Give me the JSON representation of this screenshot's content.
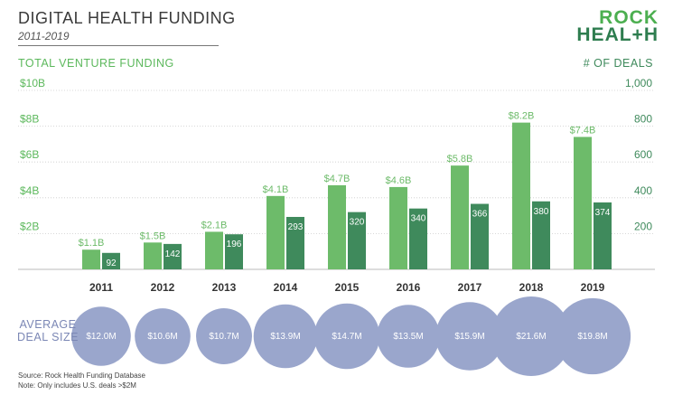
{
  "header": {
    "title": "DIGITAL HEALTH FUNDING",
    "subtitle": "2011-2019",
    "logo_line1": "ROCK",
    "logo_line2": "HEAL+H"
  },
  "colors": {
    "funding_bar": "#6dbb6a",
    "deals_bar": "#3f8a5c",
    "bubble": "#9aa6cc",
    "left_axis_text": "#5cb85c",
    "right_axis_text": "#3f8a5c",
    "grid": "#cccccc"
  },
  "chart_data": {
    "type": "bar",
    "title": "DIGITAL HEALTH FUNDING",
    "subtitle": "2011-2019",
    "categories": [
      "2011",
      "2012",
      "2013",
      "2014",
      "2015",
      "2016",
      "2017",
      "2018",
      "2019"
    ],
    "series": [
      {
        "name": "TOTAL VENTURE FUNDING",
        "axis": "left",
        "values": [
          1.1,
          1.5,
          2.1,
          4.1,
          4.7,
          4.6,
          5.8,
          8.2,
          7.4
        ],
        "labels": [
          "$1.1B",
          "$1.5B",
          "$2.1B",
          "$4.1B",
          "$4.7B",
          "$4.6B",
          "$5.8B",
          "$8.2B",
          "$7.4B"
        ]
      },
      {
        "name": "# OF DEALS",
        "axis": "right",
        "values": [
          92,
          142,
          196,
          293,
          320,
          340,
          366,
          380,
          374
        ],
        "labels": [
          "92",
          "142",
          "196",
          "293",
          "320",
          "340",
          "366",
          "380",
          "374"
        ]
      }
    ],
    "left_axis": {
      "label": "TOTAL VENTURE FUNDING",
      "range": [
        0,
        10
      ],
      "ticks": [
        2,
        4,
        6,
        8,
        10
      ],
      "tick_labels": [
        "$2B",
        "$4B",
        "$6B",
        "$8B",
        "$10B"
      ]
    },
    "right_axis": {
      "label": "# OF DEALS",
      "range": [
        0,
        1000
      ],
      "ticks": [
        200,
        400,
        600,
        800,
        1000
      ],
      "tick_labels": [
        "200",
        "400",
        "600",
        "800",
        "1,000"
      ]
    },
    "grid": true,
    "average_deal_size": {
      "label": "AVERAGE DEAL SIZE",
      "values": [
        12.0,
        10.6,
        10.7,
        13.9,
        14.7,
        13.5,
        15.9,
        21.6,
        19.8
      ],
      "labels": [
        "$12.0M",
        "$10.6M",
        "$10.7M",
        "$13.9M",
        "$14.7M",
        "$13.5M",
        "$15.9M",
        "$21.6M",
        "$19.8M"
      ]
    }
  },
  "footer": {
    "source": "Source: Rock Health Funding Database",
    "note": "Note: Only includes U.S. deals >$2M"
  }
}
